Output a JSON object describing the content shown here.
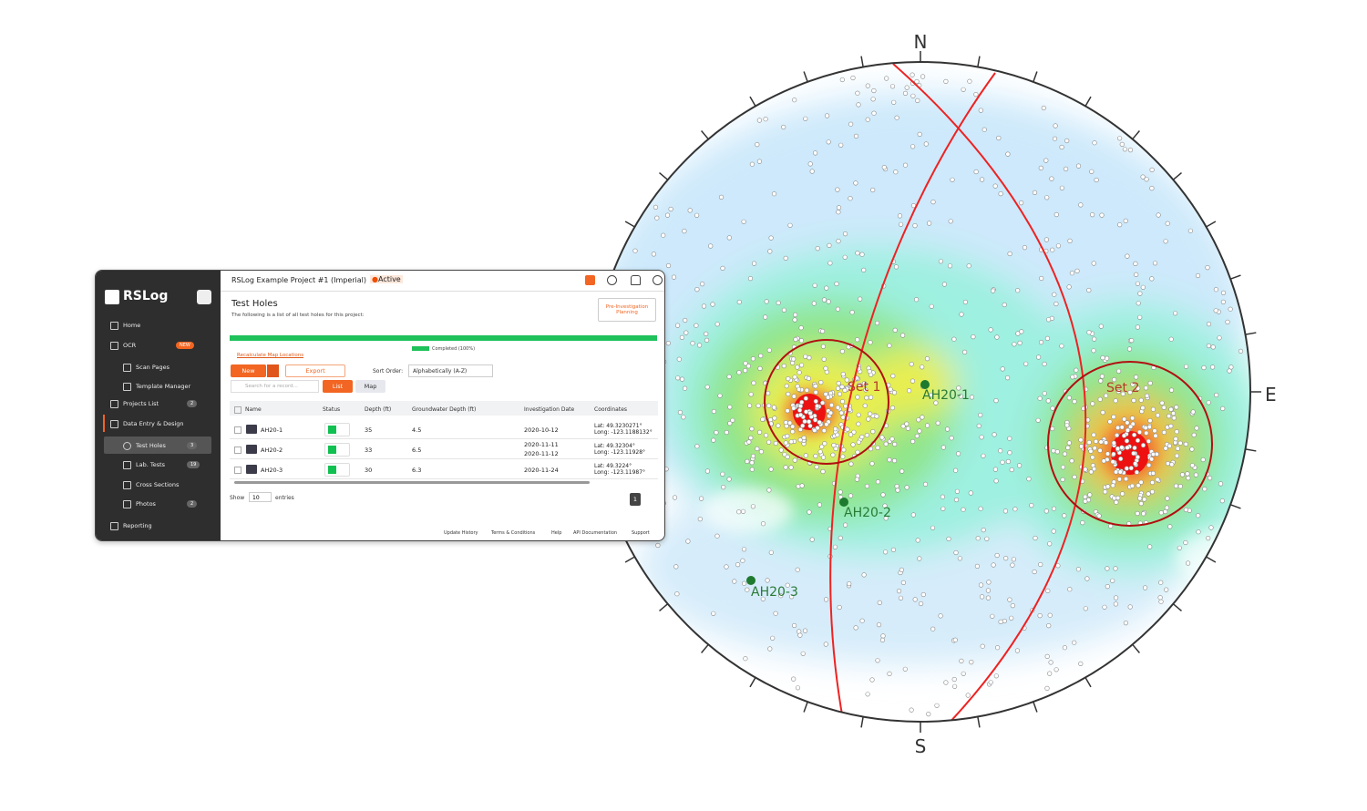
{
  "stereonet": {
    "compass": [
      "N",
      "E",
      "S"
    ],
    "sets": [
      "Set 1",
      "Set 2"
    ],
    "markers": [
      "AH20-1",
      "AH20-2",
      "AH20-3"
    ]
  },
  "app": {
    "logo": "RSLog",
    "sidebar": [
      {
        "label": "Home"
      },
      {
        "label": "OCR",
        "badge": "NEW"
      },
      {
        "label": "Scan Pages",
        "sub": true
      },
      {
        "label": "Template Manager",
        "sub": true
      },
      {
        "label": "Projects List",
        "badge": "2"
      },
      {
        "label": "Data Entry & Design"
      },
      {
        "label": "Test Holes",
        "badge": "3",
        "sub": true
      },
      {
        "label": "Lab. Tests",
        "badge": "19",
        "sub": true
      },
      {
        "label": "Cross Sections",
        "sub": true
      },
      {
        "label": "Photos",
        "badge": "2",
        "sub": true
      },
      {
        "label": "Reporting"
      }
    ],
    "header": {
      "project": "RSLog Example Project #1 (Imperial)",
      "status": "Active"
    },
    "page": {
      "title": "Test Holes",
      "subtitle": "The following is a list of all test holes for this project:",
      "planning_button": "Pre-Investigation Planning",
      "progress": "Completed (100%)",
      "recalc": "Recalculate Map Locations",
      "new": "New",
      "export": "Export",
      "sort_label": "Sort Order:",
      "sort_value": "Alphabetically (A-Z)",
      "search_placeholder": "Search for a record...",
      "list": "List",
      "map": "Map"
    },
    "table": {
      "columns": [
        "Name",
        "Status",
        "Depth (ft)",
        "Groundwater Depth (ft)",
        "Investigation Date",
        "Coordinates"
      ],
      "rows": [
        {
          "name": "AH20-1",
          "depth": 35,
          "gw": 4.5,
          "dates": [
            "2020-10-12"
          ],
          "coords": [
            "Lat: 49.3230271°",
            "Long: -123.1188132°"
          ]
        },
        {
          "name": "AH20-2",
          "depth": 33,
          "gw": 6.5,
          "dates": [
            "2020-11-11",
            "2020-11-12"
          ],
          "coords": [
            "Lat: 49.32304°",
            "Long: -123.11928°"
          ]
        },
        {
          "name": "AH20-3",
          "depth": 30,
          "gw": 6.3,
          "dates": [
            "2020-11-24"
          ],
          "coords": [
            "Lat: 49.3224°",
            "Long: -123.11987°"
          ]
        }
      ]
    },
    "footer": {
      "show": "Show",
      "entries_count": "10",
      "entries": "entries",
      "page": "1",
      "links": [
        "Update History",
        "Terms & Conditions",
        "Help",
        "API Documentation",
        "Support"
      ]
    }
  }
}
